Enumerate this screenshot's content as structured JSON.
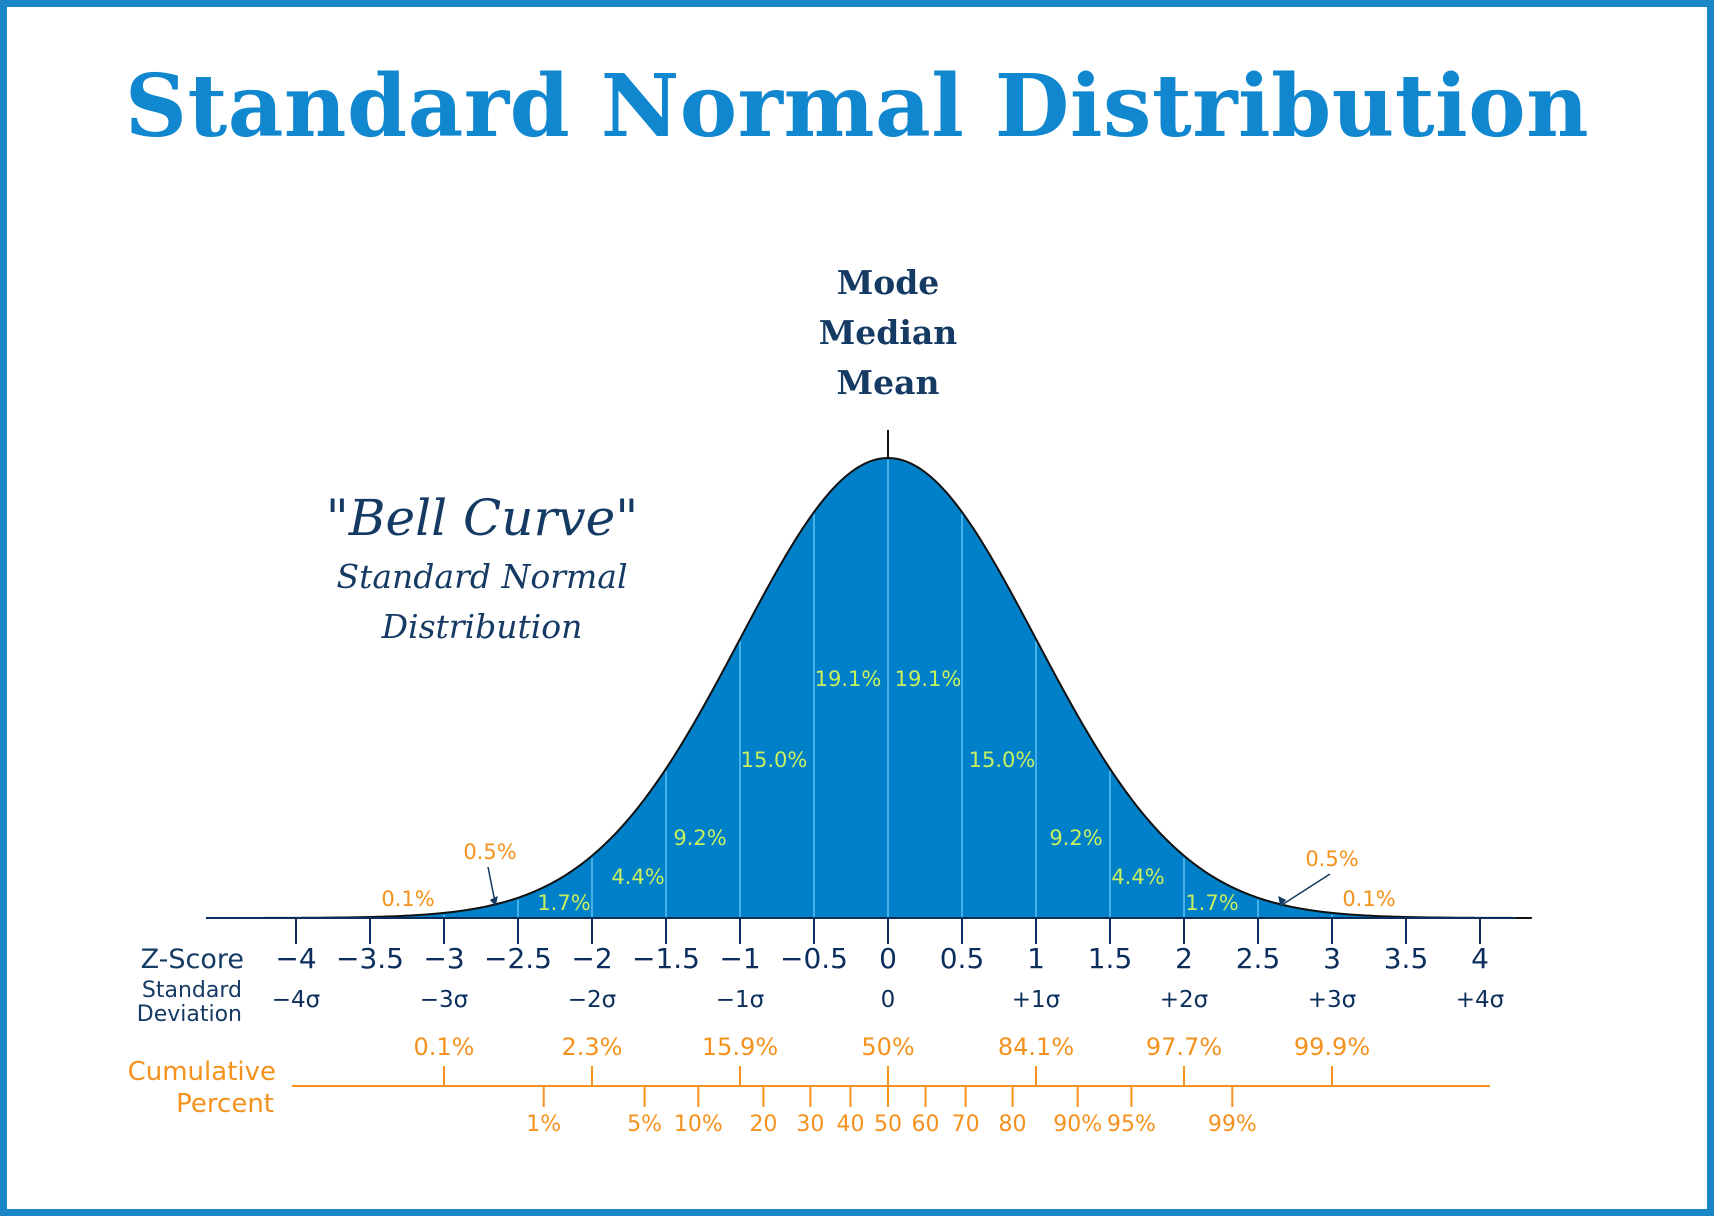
{
  "title": "Standard Normal Distribution",
  "central_labels": [
    "Mode",
    "Median",
    "Mean"
  ],
  "bell_label": {
    "quote": "\"Bell Curve\"",
    "line1": "Standard Normal",
    "line2": "Distribution"
  },
  "colors": {
    "border": "#1a86c8",
    "title": "#1187cf",
    "fill": "#0080c8",
    "segment_lines": "#5cc0f5",
    "percent_labels": "#c8f060",
    "axis": "#0b2e5c",
    "cumulative": "#f5921e",
    "dark_text": "#153a63"
  },
  "row_labels": {
    "zscore": "Z-Score",
    "sd_line1": "Standard",
    "sd_line2": "Deviation",
    "cum_line1": "Cumulative",
    "cum_line2": "Percent"
  },
  "chart_data": {
    "type": "area",
    "curve": "standard normal density",
    "z_ticks": [
      -4,
      -3.5,
      -3,
      -2.5,
      -2,
      -1.5,
      -1,
      -0.5,
      0,
      0.5,
      1,
      1.5,
      2,
      2.5,
      3,
      3.5,
      4
    ],
    "z_labels": [
      "−4",
      "−3.5",
      "−3",
      "−2.5",
      "−2",
      "−1.5",
      "−1",
      "−0.5",
      "0",
      "0.5",
      "1",
      "1.5",
      "2",
      "2.5",
      "3",
      "3.5",
      "4"
    ],
    "sd_labels": [
      {
        "z": -4,
        "text": "−4σ"
      },
      {
        "z": -3,
        "text": "−3σ"
      },
      {
        "z": -2,
        "text": "−2σ"
      },
      {
        "z": -1,
        "text": "−1σ"
      },
      {
        "z": 0,
        "text": "0"
      },
      {
        "z": 1,
        "text": "+1σ"
      },
      {
        "z": 2,
        "text": "+2σ"
      },
      {
        "z": 3,
        "text": "+3σ"
      },
      {
        "z": 4,
        "text": "+4σ"
      }
    ],
    "segment_percents": [
      {
        "from": -3.5,
        "to": -3,
        "text": "0.1%",
        "placement": "outside"
      },
      {
        "from": -3,
        "to": -2.5,
        "text": "0.5%",
        "placement": "callout"
      },
      {
        "from": -2.5,
        "to": -2,
        "text": "1.7%",
        "placement": "inside"
      },
      {
        "from": -2,
        "to": -1.5,
        "text": "4.4%",
        "placement": "inside"
      },
      {
        "from": -1.5,
        "to": -1,
        "text": "9.2%",
        "placement": "inside"
      },
      {
        "from": -1,
        "to": -0.5,
        "text": "15.0%",
        "placement": "inside"
      },
      {
        "from": -0.5,
        "to": 0,
        "text": "19.1%",
        "placement": "inside"
      },
      {
        "from": 0,
        "to": 0.5,
        "text": "19.1%",
        "placement": "inside"
      },
      {
        "from": 0.5,
        "to": 1,
        "text": "15.0%",
        "placement": "inside"
      },
      {
        "from": 1,
        "to": 1.5,
        "text": "9.2%",
        "placement": "inside"
      },
      {
        "from": 1.5,
        "to": 2,
        "text": "4.4%",
        "placement": "inside"
      },
      {
        "from": 2,
        "to": 2.5,
        "text": "1.7%",
        "placement": "inside"
      },
      {
        "from": 2.5,
        "to": 3,
        "text": "0.5%",
        "placement": "callout"
      },
      {
        "from": 3,
        "to": 3.5,
        "text": "0.1%",
        "placement": "outside"
      }
    ],
    "cumulative_top": [
      {
        "z": -3,
        "text": "0.1%"
      },
      {
        "z": -2,
        "text": "2.3%"
      },
      {
        "z": -1,
        "text": "15.9%"
      },
      {
        "z": 0,
        "text": "50%"
      },
      {
        "z": 1,
        "text": "84.1%"
      },
      {
        "z": 2,
        "text": "97.7%"
      },
      {
        "z": 3,
        "text": "99.9%"
      }
    ],
    "cumulative_bottom": [
      {
        "p": 1,
        "text": "1%"
      },
      {
        "p": 5,
        "text": "5%"
      },
      {
        "p": 10,
        "text": "10%"
      },
      {
        "p": 20,
        "text": "20"
      },
      {
        "p": 30,
        "text": "30"
      },
      {
        "p": 40,
        "text": "40"
      },
      {
        "p": 50,
        "text": "50"
      },
      {
        "p": 60,
        "text": "60"
      },
      {
        "p": 70,
        "text": "70"
      },
      {
        "p": 80,
        "text": "80"
      },
      {
        "p": 90,
        "text": "90%"
      },
      {
        "p": 95,
        "text": "95%"
      },
      {
        "p": 99,
        "text": "99%"
      }
    ]
  }
}
